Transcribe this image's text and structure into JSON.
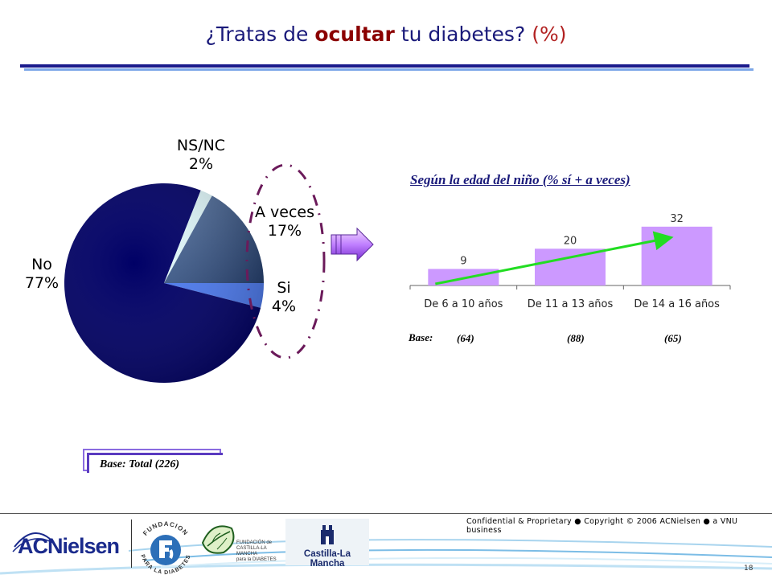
{
  "title": {
    "pre": "¿Tratas de ",
    "highlight": "ocultar",
    "post": " tu diabetes? ",
    "pct": "(%)"
  },
  "pie": {
    "labels": {
      "nsnc_name": "NS/NC",
      "nsnc_value": "2%",
      "aveces_name": "A veces",
      "aveces_value": "17%",
      "si_name": "Si",
      "si_value": "4%",
      "no_name": "No",
      "no_value": "77%"
    }
  },
  "base_total": "Base: Total (226)",
  "subchart_title": "Según la edad del niño (% sí + a veces)",
  "base_label": "Base:",
  "bases": [
    "(64)",
    "(88)",
    "(65)"
  ],
  "chart_data": [
    {
      "type": "pie",
      "categories": [
        "No",
        "A veces",
        "Si",
        "NS/NC"
      ],
      "values": [
        77,
        17,
        4,
        2
      ],
      "colors": [
        "#000066",
        "#3d5a8a",
        "#4d7bf0",
        "#e0f8fb"
      ]
    },
    {
      "type": "bar",
      "categories": [
        "De 6 a 10 años",
        "De 11 a 13 años",
        "De 14 a 16 años"
      ],
      "values": [
        9,
        20,
        32
      ],
      "data_labels": [
        "9",
        "20",
        "32"
      ],
      "trend_arrow": true,
      "bar_color": "#cc99ff",
      "trend_color": "#22dd22",
      "ylim": [
        0,
        35
      ]
    }
  ],
  "footer": {
    "confidential": "Confidential & Proprietary ● Copyright © 2006 ACNielsen ● a VNU business",
    "page": "18",
    "logos": {
      "acnielsen": "ACNielsen",
      "fundacion_top": "FUNDACION",
      "fundacion_bottom": "PARA LA DIABETES",
      "fcm_line1": "FUNDACIÓN de",
      "fcm_line2": "CASTILLA-LA MANCHA",
      "fcm_line3": "para la DIABETES",
      "clm": "Castilla-La Mancha"
    }
  }
}
